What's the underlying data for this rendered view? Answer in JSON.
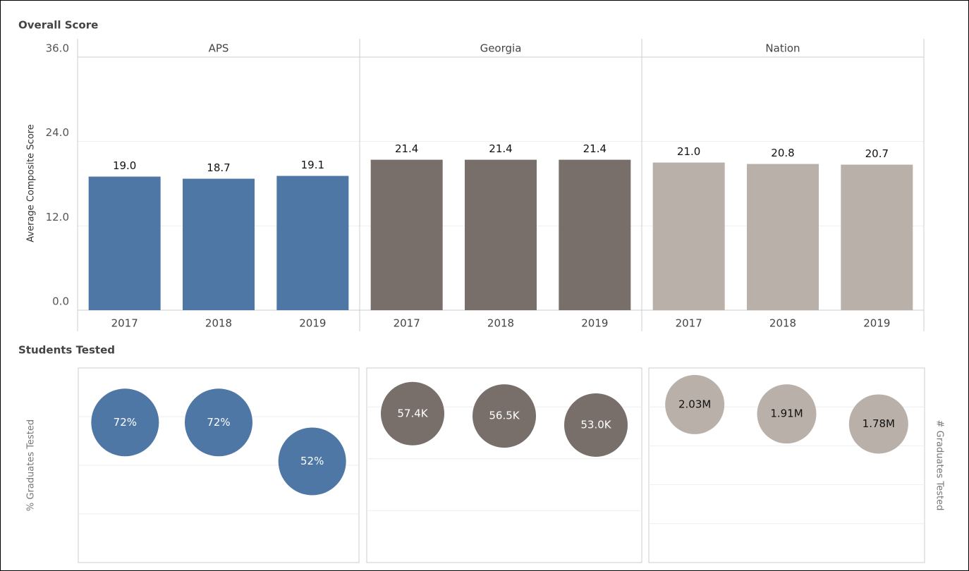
{
  "chart_data": [
    {
      "type": "bar",
      "title": "Overall Score",
      "y_label": "Average Composite Score",
      "ylim": [
        0,
        36
      ],
      "yticks": [
        {
          "value": 0,
          "label": "0.0"
        },
        {
          "value": 12,
          "label": "12.0"
        },
        {
          "value": 24,
          "label": "24.0"
        },
        {
          "value": 36,
          "label": "36.0"
        }
      ],
      "grid": true,
      "panels": [
        {
          "name": "APS",
          "color": "#4e77a6",
          "categories": [
            "2017",
            "2018",
            "2019"
          ],
          "values": [
            19.0,
            18.7,
            19.1
          ],
          "value_labels": [
            "19.0",
            "18.7",
            "19.1"
          ]
        },
        {
          "name": "Georgia",
          "color": "#786e6a",
          "categories": [
            "2017",
            "2018",
            "2019"
          ],
          "values": [
            21.4,
            21.4,
            21.4
          ],
          "value_labels": [
            "21.4",
            "21.4",
            "21.4"
          ]
        },
        {
          "name": "Nation",
          "color": "#bab0aa",
          "categories": [
            "2017",
            "2018",
            "2019"
          ],
          "values": [
            21.0,
            20.8,
            20.7
          ],
          "value_labels": [
            "21.0",
            "20.8",
            "20.7"
          ]
        }
      ]
    },
    {
      "type": "bubble",
      "title": "Students Tested",
      "y_label": "% Graduates Tested",
      "y2_label": "# Graduates Tested",
      "grid": true,
      "panels": [
        {
          "color": "#4e77a6",
          "values": [
            72,
            72,
            52
          ],
          "value_labels": [
            "72%",
            "72%",
            "52%"
          ],
          "ylim": [
            0,
            100
          ],
          "yticks": [
            25,
            50,
            75
          ]
        },
        {
          "color": "#786e6a",
          "values": [
            57400,
            56500,
            53000
          ],
          "value_labels": [
            "57.4K",
            "56.5K",
            "53.0K"
          ],
          "ylim": [
            0,
            75000
          ],
          "yticks": [
            20000,
            40000,
            60000
          ]
        },
        {
          "color": "#bab0aa",
          "values": [
            2030000,
            1910000,
            1780000
          ],
          "value_labels": [
            "2.03M",
            "1.91M",
            "1.78M"
          ],
          "ylim": [
            0,
            2500000
          ],
          "yticks": [
            500000,
            1000000,
            1500000,
            2000000
          ]
        }
      ]
    }
  ]
}
